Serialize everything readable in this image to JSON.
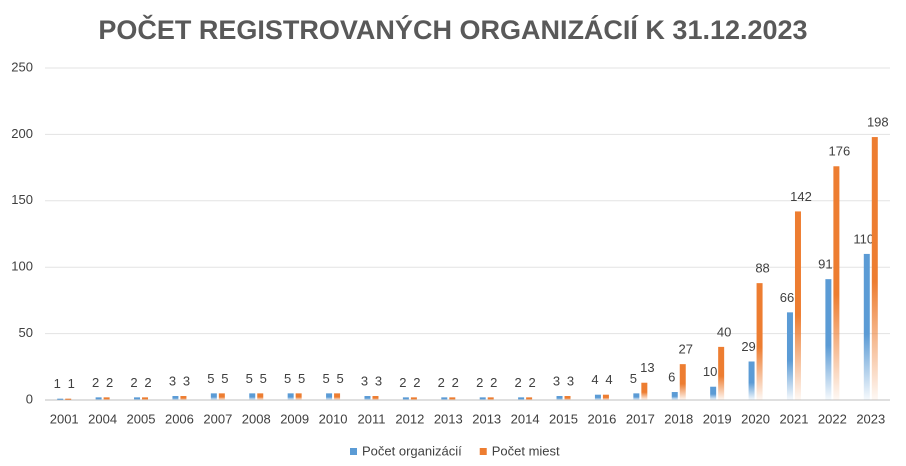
{
  "chart_data": {
    "type": "bar",
    "title": "POČET REGISTROVANÝCH ORGANIZÁCIÍ K 31.12.2023",
    "categories": [
      "2001",
      "2004",
      "2005",
      "2006",
      "2007",
      "2008",
      "2009",
      "2010",
      "2011",
      "2012",
      "2013",
      "2013",
      "2014",
      "2015",
      "2016",
      "2017",
      "2018",
      "2019",
      "2020",
      "2021",
      "2022",
      "2023"
    ],
    "series": [
      {
        "name": "Počet organizácií",
        "color": "#5b9bd5",
        "values": [
          1,
          2,
          2,
          3,
          5,
          5,
          5,
          5,
          3,
          2,
          2,
          2,
          2,
          3,
          4,
          5,
          6,
          10,
          29,
          66,
          91,
          110
        ]
      },
      {
        "name": "Počet miest",
        "color": "#ed7d31",
        "values": [
          1,
          2,
          2,
          3,
          5,
          5,
          5,
          5,
          3,
          2,
          2,
          2,
          2,
          3,
          4,
          13,
          27,
          40,
          88,
          142,
          176,
          198
        ]
      }
    ],
    "ylim": [
      0,
      250
    ],
    "yticks": [
      0,
      50,
      100,
      150,
      200,
      250
    ],
    "grid": true,
    "legend": "bottom"
  }
}
